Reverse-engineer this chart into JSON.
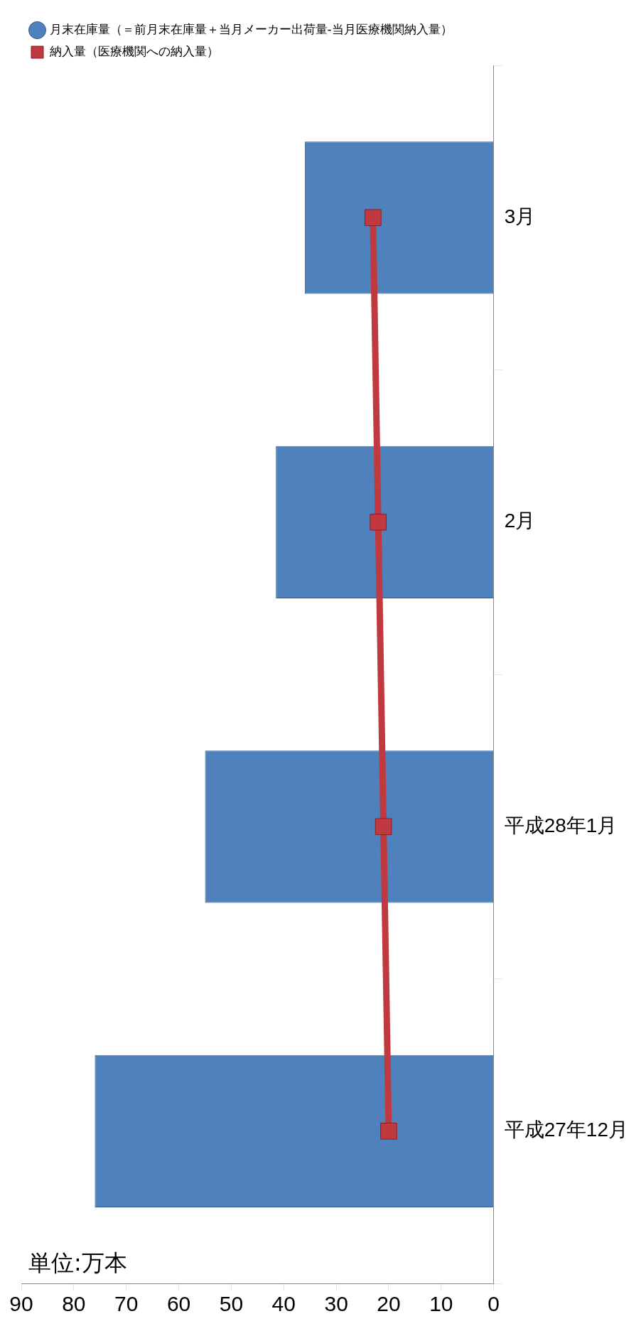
{
  "chart_data": {
    "type": "bar",
    "orientation": "horizontal",
    "categories": [
      "3月",
      "2月",
      "平成28年1月",
      "平成27年12月"
    ],
    "series": [
      {
        "name": "月末在庫量（＝前月末在庫量＋当月メーカー出荷量-当月医療機関納入量）",
        "color": "#4f81bd",
        "values": [
          36,
          41.5,
          55,
          76
        ]
      },
      {
        "name": "納入量（医療機関への納入量）",
        "type": "line",
        "color": "#c0393f",
        "values": [
          23,
          22,
          21,
          20
        ],
        "marker": "square"
      }
    ],
    "xlim": [
      90,
      0
    ],
    "xticks": [
      90,
      80,
      70,
      60,
      50,
      40,
      30,
      20,
      10,
      0
    ],
    "grid": false,
    "legend": "top left",
    "annotations": [
      "単位:万本"
    ]
  }
}
